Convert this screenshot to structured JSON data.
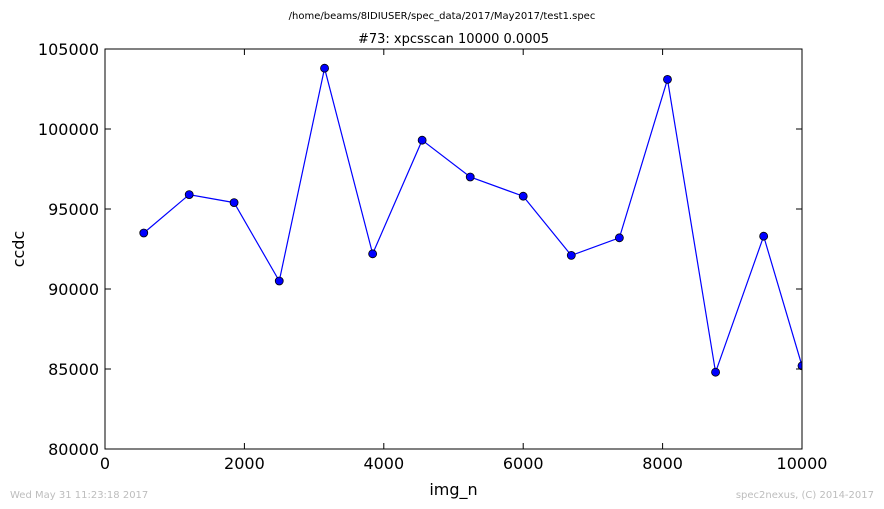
{
  "chart_data": {
    "type": "line",
    "suptitle": "/home/beams/8IDIUSER/spec_data/2017/May2017/test1.spec",
    "title": "#73: xpcsscan 10000 0.0005",
    "xlabel": "img_n",
    "ylabel": "ccdc",
    "xlim": [
      0,
      10000
    ],
    "ylim": [
      80000,
      105000
    ],
    "x_ticks": [
      "0",
      "2000",
      "4000",
      "6000",
      "8000",
      "10000"
    ],
    "y_ticks": [
      "80000",
      "85000",
      "90000",
      "95000",
      "100000",
      "105000"
    ],
    "grid": false,
    "colors": {
      "series": "#0000ff",
      "marker_edge": "#000000"
    },
    "series": [
      {
        "x": [
          556,
          1208,
          1852,
          2500,
          3150,
          3840,
          4550,
          5240,
          6000,
          6690,
          7380,
          8070,
          8760,
          9450,
          10000
        ],
        "y": [
          93500,
          95900,
          95400,
          90500,
          103800,
          92200,
          99300,
          97000,
          95800,
          92100,
          93200,
          103100,
          84800,
          93300,
          85200
        ]
      }
    ]
  },
  "footer": {
    "timestamp": "Wed May 31 11:23:18 2017",
    "credit": "spec2nexus, (C) 2014-2017"
  }
}
